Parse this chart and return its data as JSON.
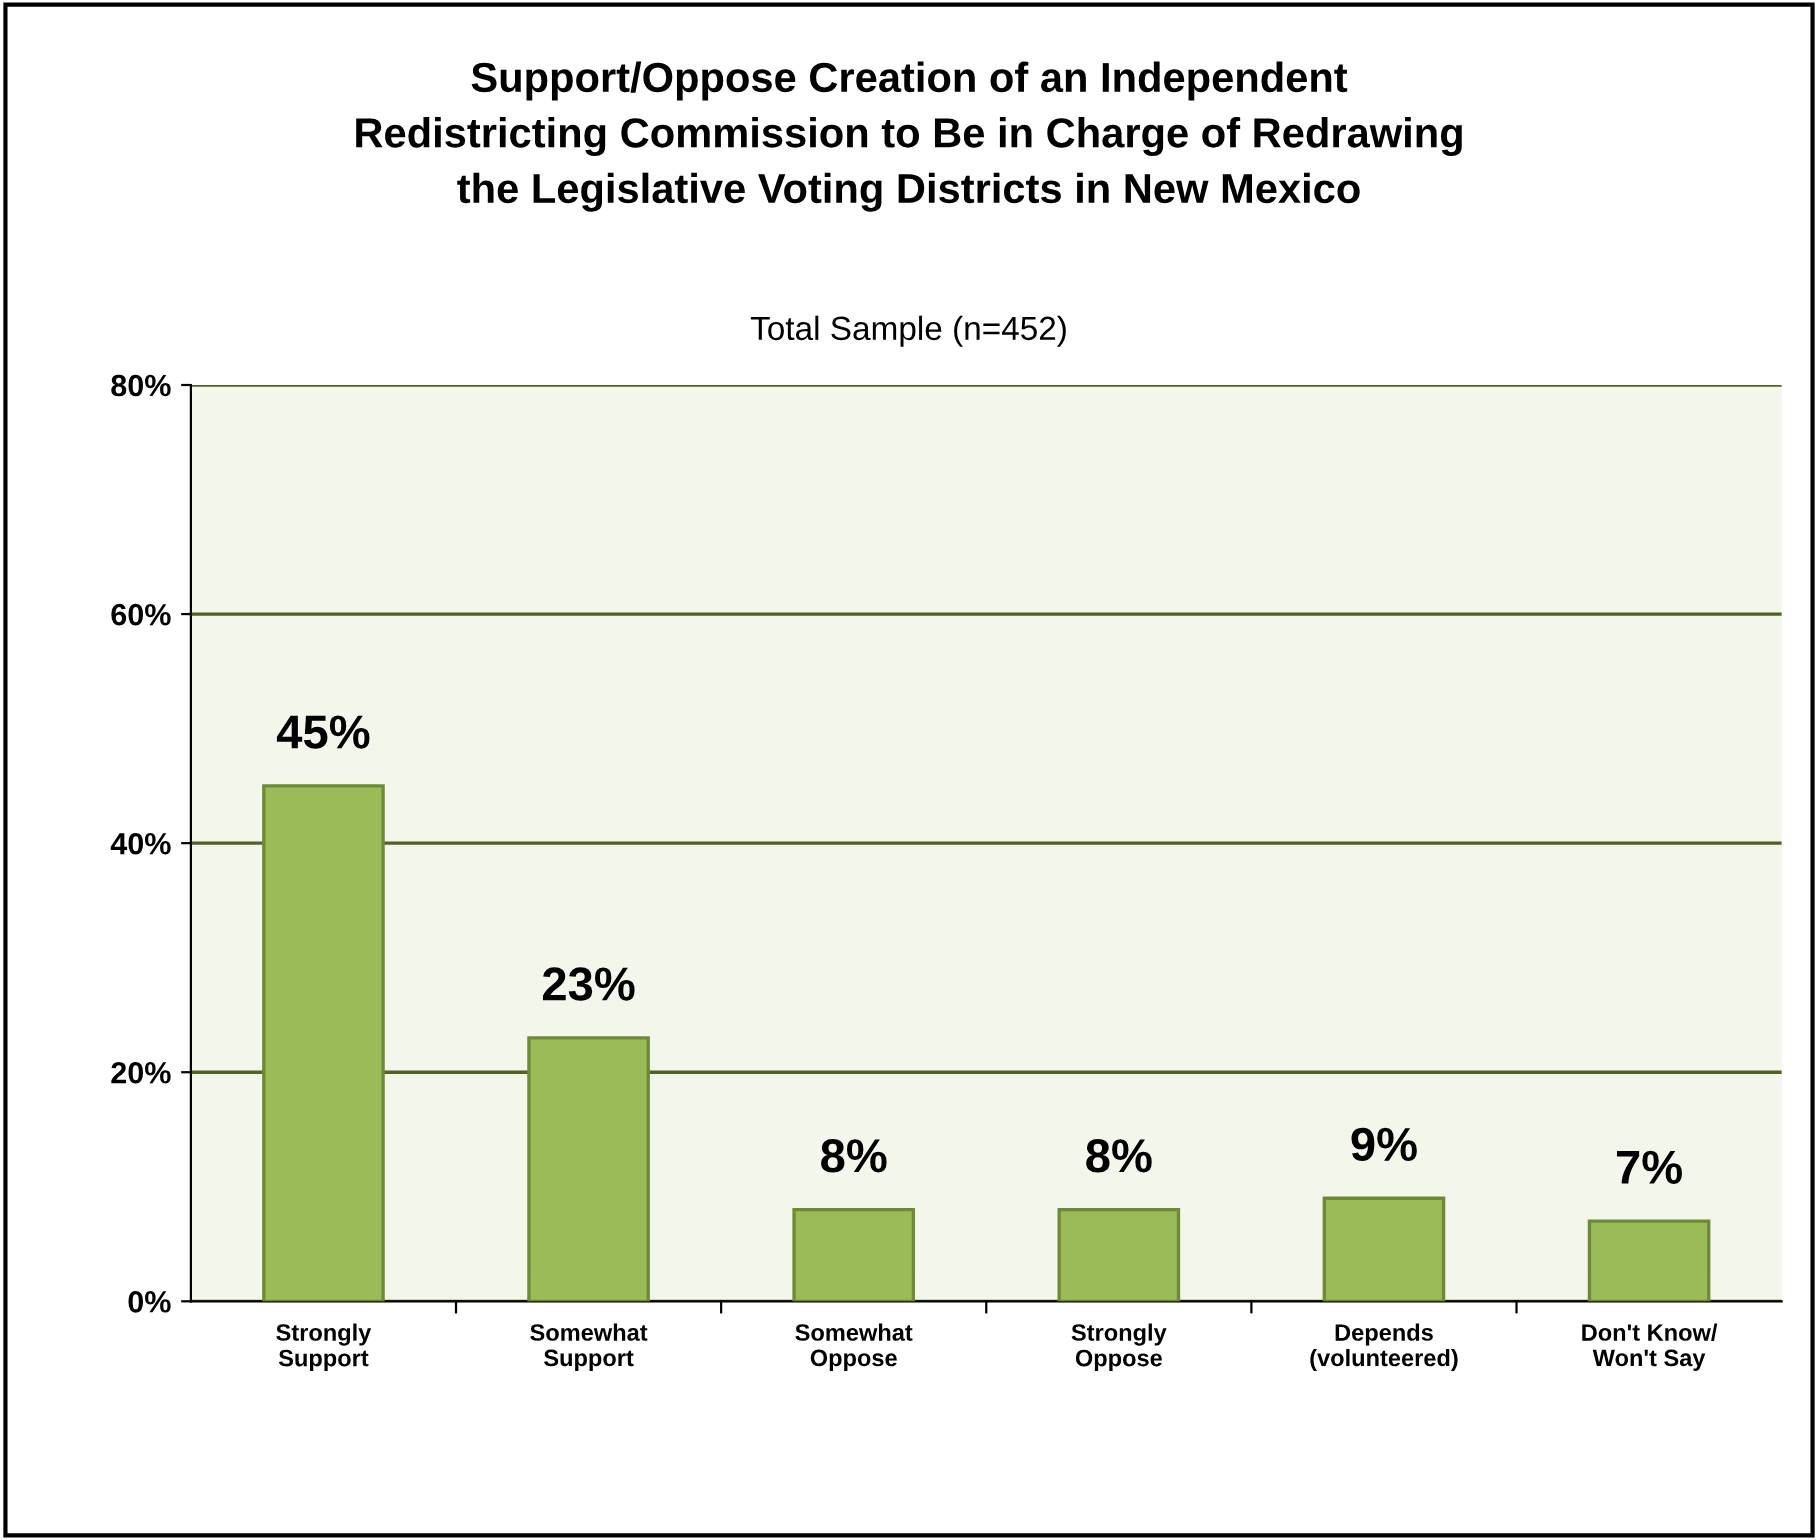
{
  "chart_data": {
    "type": "bar",
    "title": "Support/Oppose Creation of an Independent\nRedistricting Commission to Be in Charge of Redrawing\nthe Legislative Voting Districts in New Mexico",
    "subtitle": "Total Sample (n=452)",
    "categories": [
      "Strongly\nSupport",
      "Somewhat\nSupport",
      "Somewhat\nOppose",
      "Strongly\nOppose",
      "Depends\n(volunteered)",
      "Don't Know/\nWon't Say"
    ],
    "values": [
      45,
      23,
      8,
      8,
      9,
      7
    ],
    "value_labels": [
      "45%",
      "23%",
      "8%",
      "8%",
      "9%",
      "7%"
    ],
    "color": "#9bbb59",
    "ylim": [
      0,
      80
    ],
    "yticks": [
      {
        "value": 0,
        "label": "0%"
      },
      {
        "value": 20,
        "label": "20%"
      },
      {
        "value": 40,
        "label": "40%"
      },
      {
        "value": 60,
        "label": "60%"
      },
      {
        "value": 80,
        "label": "80%"
      }
    ],
    "grid": "y"
  }
}
